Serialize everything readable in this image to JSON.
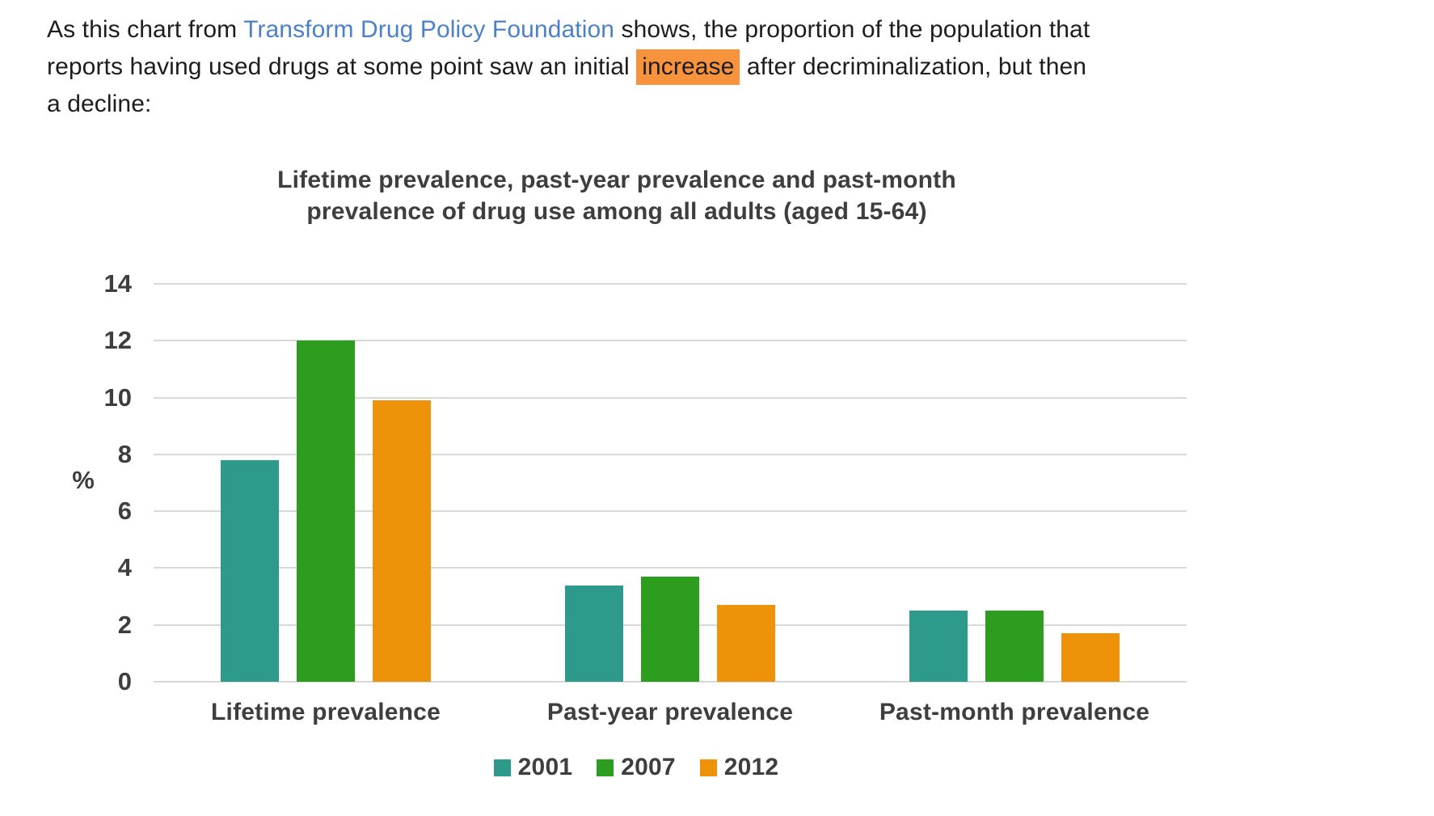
{
  "paragraph": {
    "text_color": "#1d1d1d",
    "link_color": "#4c81c6",
    "highlight_color": "#f7923d",
    "lines": [
      [
        {
          "t": "As this chart from ",
          "s": "plain"
        },
        {
          "t": "Transform Drug Policy Foundation",
          "s": "link"
        },
        {
          "t": " shows, the proportion of the population that",
          "s": "plain"
        }
      ],
      [
        {
          "t": "reports having used drugs at some point saw an initial ",
          "s": "plain"
        },
        {
          "t": "increase",
          "s": "highlight"
        },
        {
          "t": " after decriminalization, but then",
          "s": "plain"
        }
      ],
      [
        {
          "t": "a decline:",
          "s": "plain"
        }
      ]
    ]
  },
  "chart_data": {
    "type": "bar",
    "title": "Lifetime prevalence, past-year prevalence and past-month prevalence of drug use among all adults (aged 15-64)",
    "title_lines": [
      "Lifetime prevalence, past-year prevalence and past-month",
      "prevalence of drug use among all adults (aged 15-64)"
    ],
    "ylabel": "%",
    "categories": [
      "Lifetime prevalence",
      "Past-year prevalence",
      "Past-month prevalence"
    ],
    "series": [
      {
        "name": "2001",
        "color": "#2e9a8c",
        "values": [
          7.8,
          3.4,
          2.5
        ]
      },
      {
        "name": "2007",
        "color": "#2d9d20",
        "values": [
          12.0,
          3.7,
          2.5
        ]
      },
      {
        "name": "2012",
        "color": "#ee9309",
        "values": [
          9.9,
          2.7,
          1.7
        ]
      }
    ],
    "yticks": [
      0,
      2,
      4,
      6,
      8,
      10,
      12,
      14
    ],
    "ylim": [
      0,
      14
    ],
    "grid": true,
    "gridline_color": "#d9d9d9",
    "legend_position": "bottom",
    "axis_text_color": "#3e3e3e"
  }
}
